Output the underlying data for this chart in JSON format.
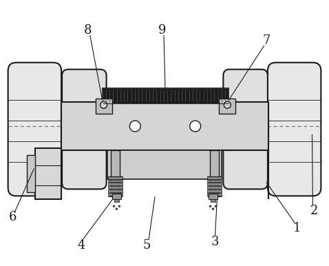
{
  "bg": "white",
  "lc": "#1a1a1a",
  "dc": "#111111",
  "fc_light": "#e5e5e5",
  "fc_mid": "#d0d0d0",
  "fc_dark": "#222222",
  "fc_gray": "#b8b8b8",
  "figsize": [
    4.78,
    3.86
  ],
  "dpi": 100,
  "label_fs": 13,
  "label_color": "#1a1a1a"
}
